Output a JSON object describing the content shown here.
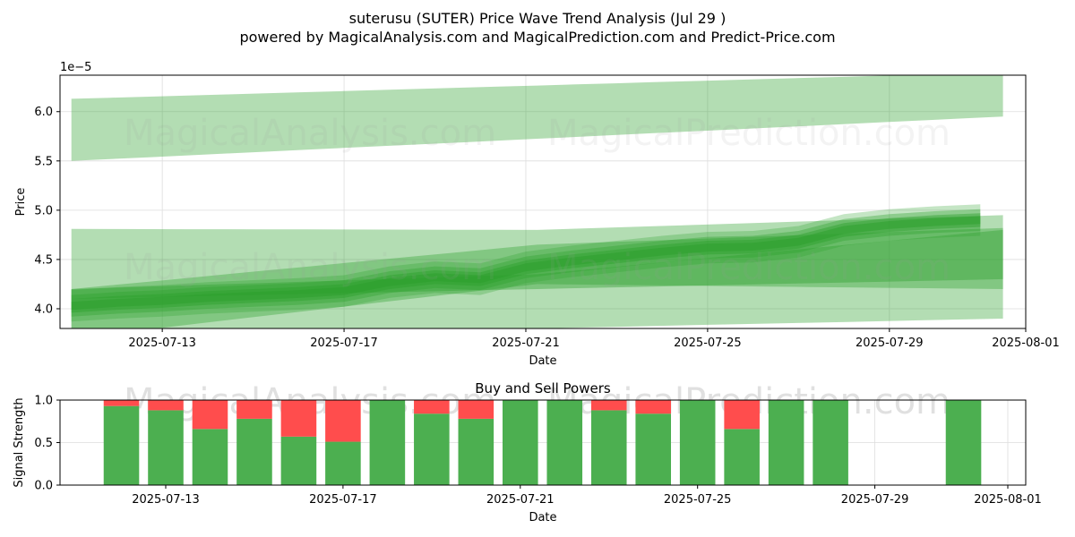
{
  "title_line1": "suterusu (SUTER) Price Wave Trend Analysis (Jul 29 )",
  "title_line2": "powered by MagicalAnalysis.com and MagicalPrediction.com and Predict-Price.com",
  "watermarks": [
    "MagicalAnalysis.com",
    "MagicalPrediction.com"
  ],
  "colors": {
    "band": "#2ca02c",
    "buy": "#4caf50",
    "sell": "#ff4d4d",
    "grid": "#dddddd"
  },
  "chart_data": [
    {
      "type": "area",
      "xlabel": "Date",
      "ylabel": "Price",
      "offset_label": "1e−5",
      "xlim": [
        "2025-07-10T18:00",
        "2025-08-01"
      ],
      "ylim": [
        3.8,
        6.37
      ],
      "xticks": [
        "2025-07-13",
        "2025-07-17",
        "2025-07-21",
        "2025-07-25",
        "2025-07-29",
        "2025-08-01"
      ],
      "yticks": [
        4.0,
        4.5,
        5.0,
        5.5,
        6.0
      ],
      "grid": true,
      "bands": [
        {
          "opacity": 0.36,
          "start": "2025-07-11",
          "end": "2025-07-31T12:00",
          "upper": [
            6.13,
            6.4
          ],
          "lower": [
            5.5,
            5.95
          ]
        },
        {
          "opacity": 0.36,
          "start": "2025-07-11",
          "end": "2025-07-31T12:00",
          "upper": [
            4.81,
            4.8,
            4.95
          ],
          "lower": [
            3.7,
            3.8,
            3.9
          ]
        },
        {
          "opacity": 0.36,
          "start": "2025-07-11",
          "end": "2025-07-31T12:00",
          "upper": [
            4.2,
            4.65,
            4.82
          ],
          "lower": [
            3.7,
            4.25,
            4.2
          ]
        },
        {
          "opacity": 0.4,
          "start": "2025-07-11",
          "end": "2025-07-31T12:00",
          "upper": [
            4.2,
            4.35,
            4.8
          ],
          "lower": [
            4.1,
            4.2,
            4.3
          ]
        }
      ],
      "series": [
        {
          "dates": [
            "2025-07-11",
            "2025-07-12",
            "2025-07-13",
            "2025-07-14",
            "2025-07-15",
            "2025-07-16",
            "2025-07-17",
            "2025-07-18",
            "2025-07-19",
            "2025-07-20",
            "2025-07-21",
            "2025-07-22",
            "2025-07-23",
            "2025-07-24",
            "2025-07-25",
            "2025-07-26",
            "2025-07-27",
            "2025-07-28",
            "2025-07-29",
            "2025-07-30",
            "2025-07-31"
          ],
          "values": [
            4.03,
            4.06,
            4.08,
            4.11,
            4.13,
            4.15,
            4.18,
            4.27,
            4.32,
            4.3,
            4.42,
            4.48,
            4.53,
            4.58,
            4.62,
            4.63,
            4.68,
            4.8,
            4.85,
            4.88,
            4.9
          ]
        }
      ]
    },
    {
      "type": "bar",
      "title": "Buy and Sell Powers",
      "xlabel": "Date",
      "ylabel": "Signal Strength",
      "ylim": [
        0,
        1
      ],
      "yticks": [
        0.0,
        0.5,
        1.0
      ],
      "xticks": [
        "2025-07-13",
        "2025-07-17",
        "2025-07-21",
        "2025-07-25",
        "2025-07-29",
        "2025-08-01"
      ],
      "grid": true,
      "categories": [
        "2025-07-12",
        "2025-07-13",
        "2025-07-14",
        "2025-07-15",
        "2025-07-16",
        "2025-07-17",
        "2025-07-18",
        "2025-07-19",
        "2025-07-20",
        "2025-07-21",
        "2025-07-22",
        "2025-07-23",
        "2025-07-24",
        "2025-07-25",
        "2025-07-26",
        "2025-07-27",
        "2025-07-28",
        "2025-07-31"
      ],
      "series": [
        {
          "name": "Buy",
          "values": [
            0.93,
            0.88,
            0.66,
            0.78,
            0.57,
            0.51,
            1.0,
            0.84,
            0.78,
            1.0,
            1.0,
            0.88,
            0.84,
            1.0,
            0.66,
            1.0,
            1.0,
            1.0
          ]
        },
        {
          "name": "Sell",
          "values": [
            0.07,
            0.12,
            0.34,
            0.22,
            0.43,
            0.49,
            0.0,
            0.16,
            0.22,
            0.0,
            0.0,
            0.12,
            0.16,
            0.0,
            0.34,
            0.0,
            0.0,
            0.0
          ]
        }
      ]
    }
  ]
}
